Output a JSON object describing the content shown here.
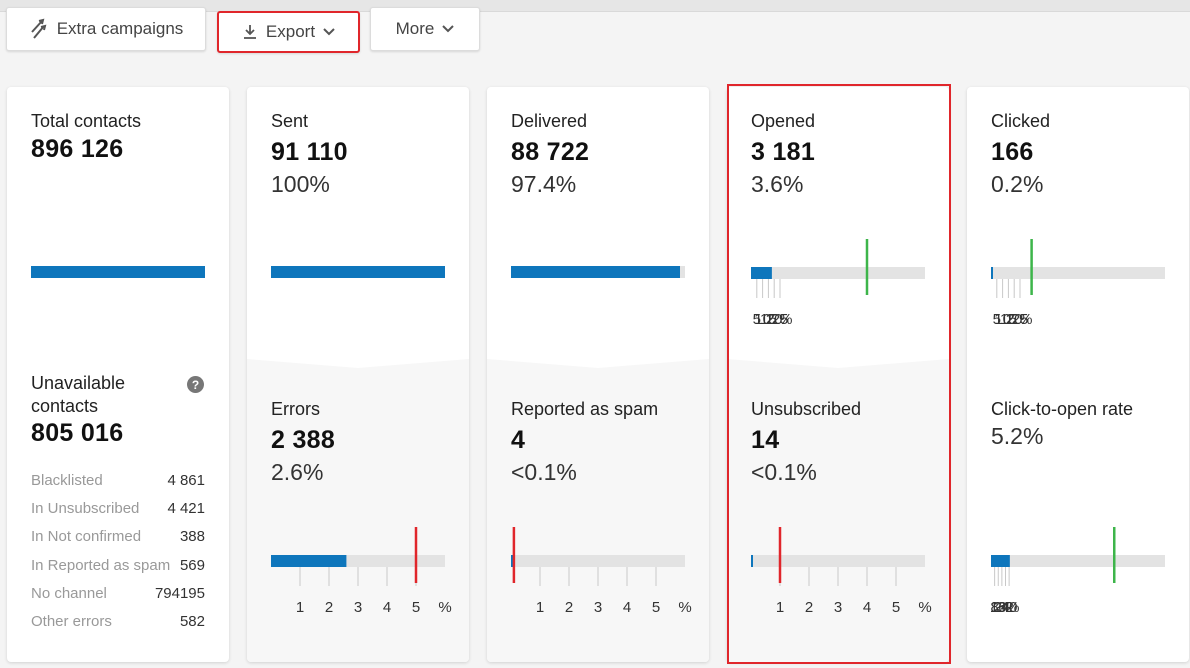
{
  "toolbar": {
    "extra_campaigns_label": "Extra campaigns",
    "export_label": "Export",
    "more_label": "More"
  },
  "colors": {
    "blue": "#0e76bc",
    "green": "#3db54a",
    "red": "#e0262b",
    "track": "#e3e3e3",
    "highlight": "#e0262b"
  },
  "cards": {
    "total": {
      "label": "Total contacts",
      "value": "896 126",
      "unavailable_label": "Unavailable contacts",
      "unavailable_value": "805 016",
      "breakdown": [
        {
          "label": "Blacklisted",
          "value": "4 861"
        },
        {
          "label": "In Unsubscribed",
          "value": "4 421"
        },
        {
          "label": "In Not confirmed",
          "value": "388"
        },
        {
          "label": "In Reported as spam",
          "value": "569"
        },
        {
          "label": "No channel",
          "value": "794195"
        },
        {
          "label": "Other errors",
          "value": "582"
        }
      ]
    },
    "sent": {
      "label": "Sent",
      "value": "91 110",
      "percent": "100%",
      "fill": 1.0
    },
    "errors": {
      "label": "Errors",
      "value": "2 388",
      "percent": "2.6%",
      "fill_value": 2.6,
      "marker_value": 5,
      "scale": [
        "1",
        "2",
        "3",
        "4",
        "5",
        "%"
      ],
      "scale_max": 6
    },
    "delivered": {
      "label": "Delivered",
      "value": "88 722",
      "percent": "97.4%",
      "fill": 0.974
    },
    "spam": {
      "label": "Reported as spam",
      "value": "4",
      "percent": "<0.1%",
      "fill_value": 0.05,
      "marker_value": 0.1,
      "scale": [
        "1",
        "2",
        "3",
        "4",
        "5",
        "%"
      ],
      "scale_max": 6
    },
    "opened": {
      "label": "Opened",
      "value": "3 181",
      "percent": "3.6%",
      "fill_value": 3.6,
      "marker_value": 20,
      "scale": [
        "5",
        "10",
        "15",
        "20",
        "25",
        "%"
      ],
      "scale_max": 30
    },
    "unsubscribed": {
      "label": "Unsubscribed",
      "value": "14",
      "percent": "<0.1%",
      "fill_value": 0.02,
      "marker_value": 1,
      "scale": [
        "1",
        "2",
        "3",
        "4",
        "5",
        "%"
      ],
      "scale_max": 6
    },
    "clicked": {
      "label": "Clicked",
      "value": "166",
      "percent": "0.2%",
      "fill_value": 0.2,
      "marker_value": 7,
      "scale": [
        "5",
        "10",
        "15",
        "20",
        "25",
        "%"
      ],
      "scale_max": 30
    },
    "cto": {
      "label": "Click-to-open rate",
      "percent": "5.2%",
      "fill_value": 5.2,
      "marker_value": 34,
      "scale": [
        "8",
        "16",
        "24",
        "32",
        "40",
        "%"
      ],
      "scale_max": 48
    }
  }
}
